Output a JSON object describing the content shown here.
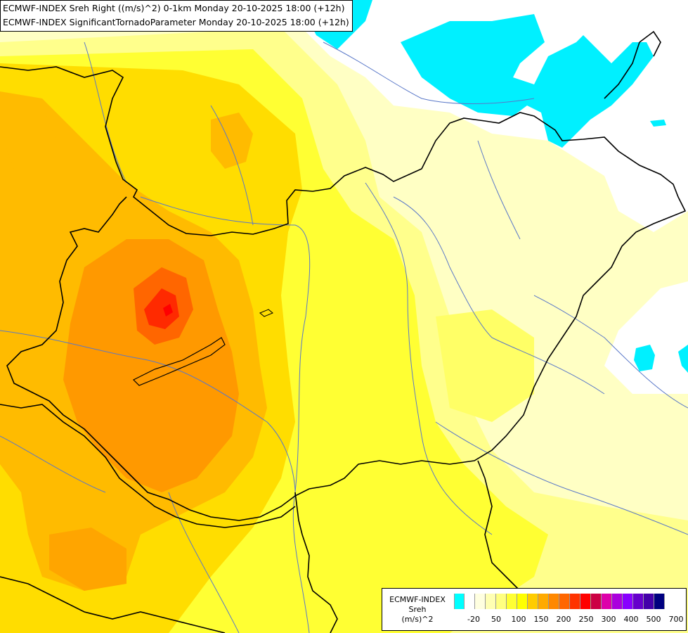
{
  "title": {
    "line1": "ECMWF-INDEX Sreh Right ((m/s)^2) 0-1km Monday 20-10-2025 18:00 (+12h)",
    "line2": "ECMWF-INDEX SignificantTornadoParameter Monday 20-10-2025 18:00 (+12h)"
  },
  "legend": {
    "model": "ECMWF-INDEX",
    "variable": "Sreh",
    "unit": "(m/s)^2",
    "colors": [
      "#00ffff",
      "#ffffff",
      "#ffffe0",
      "#ffffb3",
      "#ffff80",
      "#ffff33",
      "#ffff00",
      "#ffcc00",
      "#ffaa00",
      "#ff8800",
      "#ff6600",
      "#ff3300",
      "#ff0000",
      "#cc0044",
      "#dd00aa",
      "#aa00dd",
      "#8800ff",
      "#6600cc",
      "#4400aa",
      "#000080"
    ],
    "ticks": [
      "-20",
      "50",
      "100",
      "150",
      "200",
      "250",
      "300",
      "400",
      "500",
      "700"
    ]
  },
  "map": {
    "region": "Hungary / Pannonian Basin",
    "field_colors": {
      "cyan_low": "#00ffff",
      "white": "#ffffff",
      "pale_yellow": "#ffffc0",
      "yellow": "#ffff40",
      "orange": "#ffbb00",
      "dark_orange": "#ff9900",
      "red_orange": "#ff5500",
      "red": "#ff1a00"
    }
  }
}
